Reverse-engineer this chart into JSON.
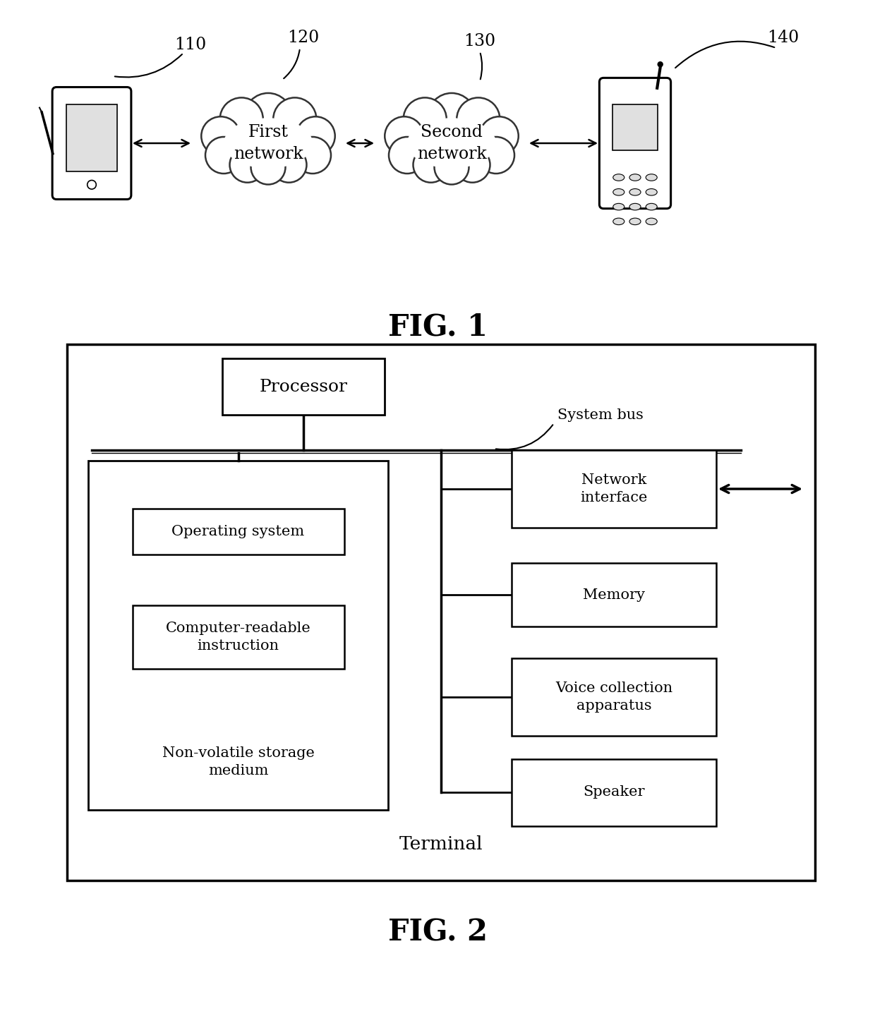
{
  "fig_width": 12.4,
  "fig_height": 14.33,
  "bg_color": "#ffffff",
  "fig1_label": "FIG. 1",
  "fig2_label": "FIG. 2",
  "labels_110": "110",
  "labels_120": "120",
  "labels_130": "130",
  "labels_140": "140",
  "network1_text": "First\nnetwork",
  "network2_text": "Second\nnetwork",
  "processor_text": "Processor",
  "system_bus_text": "System bus",
  "os_text": "Operating system",
  "cri_text": "Computer-readable\ninstruction",
  "nvsm_text": "Non-volatile storage\nmedium",
  "ni_text": "Network\ninterface",
  "mem_text": "Memory",
  "vca_text": "Voice collection\napparatus",
  "spk_text": "Speaker",
  "terminal_text": "Terminal",
  "line_color": "#000000",
  "box_edge_color": "#000000",
  "text_color": "#000000"
}
